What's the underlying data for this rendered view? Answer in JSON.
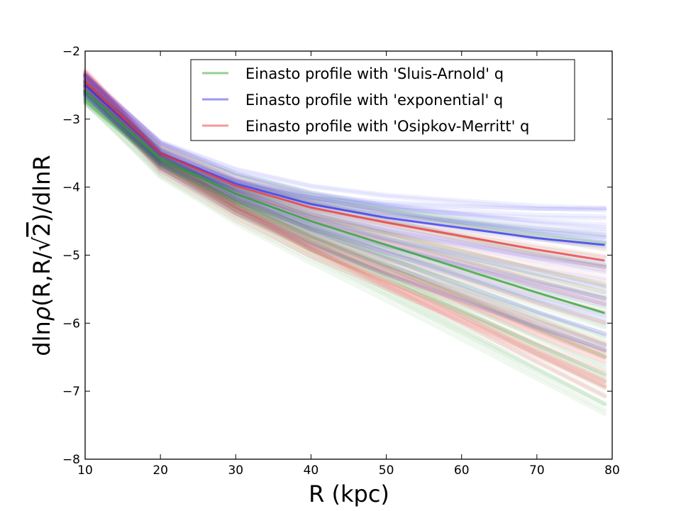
{
  "chart_data": {
    "type": "line",
    "xlabel": "R (kpc)",
    "ylabel_prefix": "dln",
    "ylabel_rho": "ρ",
    "ylabel_mid": "(R,R/",
    "ylabel_sqrt": "√",
    "ylabel_two": "2",
    "ylabel_suffix": ")/dlnR",
    "xlim": [
      10,
      80
    ],
    "ylim": [
      -8,
      -2
    ],
    "xticks": [
      10,
      20,
      30,
      40,
      50,
      60,
      70,
      80
    ],
    "yticks": [
      -8,
      -7,
      -6,
      -5,
      -4,
      -3,
      -2
    ],
    "x_range": [
      10,
      79
    ],
    "grid": false,
    "legend_placement": "top-right",
    "series": [
      {
        "name": "Einasto profile with 'Sluis-Arnold' q",
        "color": "#2ca02c",
        "mean": {
          "x": [
            10,
            20,
            30,
            40,
            50,
            60,
            70,
            79
          ],
          "y": [
            -2.6,
            -3.58,
            -4.1,
            -4.5,
            -4.85,
            -5.2,
            -5.55,
            -5.85
          ]
        },
        "band_end": [
          -4.6,
          -7.45
        ]
      },
      {
        "name": "Einasto profile with 'exponential' q",
        "color": "#3333ee",
        "mean": {
          "x": [
            10,
            20,
            30,
            40,
            50,
            60,
            70,
            79
          ],
          "y": [
            -2.5,
            -3.5,
            -3.95,
            -4.25,
            -4.45,
            -4.6,
            -4.75,
            -4.85
          ]
        },
        "band_end": [
          -4.3,
          -6.4
        ]
      },
      {
        "name": "Einasto profile with 'Osipkov-Merritt' q",
        "color": "#ee3333",
        "mean": {
          "x": [
            10,
            20,
            30,
            40,
            50,
            60,
            70,
            79
          ],
          "y": [
            -2.45,
            -3.5,
            -3.98,
            -4.3,
            -4.52,
            -4.72,
            -4.92,
            -5.08
          ]
        },
        "band_end": [
          -4.9,
          -7.1
        ]
      }
    ]
  }
}
